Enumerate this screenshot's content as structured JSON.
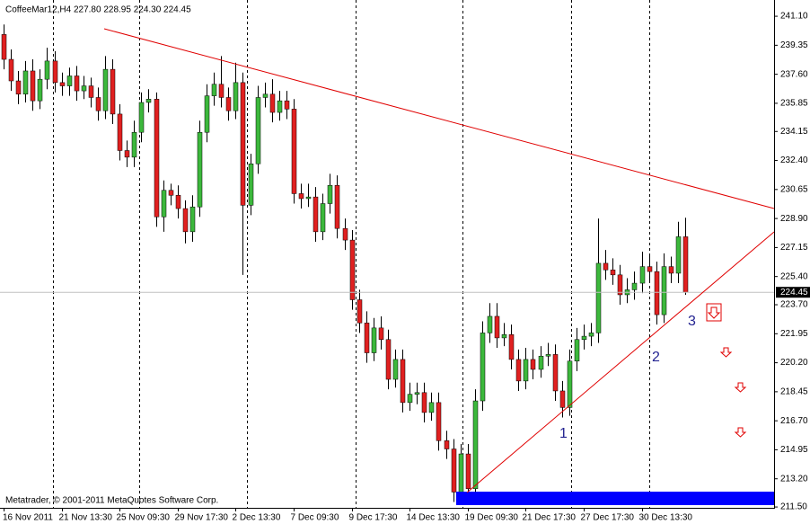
{
  "chart_data": {
    "type": "candlestick",
    "title": "CoffeeMar12,H4  227.80 228.95 224.30 224.45",
    "footer": "Metatrader, © 2001-2011 MetaQuotes Software Corp.",
    "categories": [
      "16 Nov 2011",
      null,
      null,
      null,
      null,
      null,
      null,
      null,
      "21 Nov 13:30",
      null,
      null,
      null,
      null,
      null,
      null,
      null,
      "25 Nov 09:30",
      null,
      null,
      null,
      null,
      null,
      null,
      null,
      "29 Nov 17:30",
      null,
      null,
      null,
      null,
      null,
      null,
      null,
      "2 Dec 13:30",
      null,
      null,
      null,
      null,
      null,
      null,
      null,
      "7 Dec 09:30",
      null,
      null,
      null,
      null,
      null,
      null,
      null,
      "9 Dec 17:30",
      null,
      null,
      null,
      null,
      null,
      null,
      null,
      "14 Dec 13:30",
      null,
      null,
      null,
      null,
      null,
      null,
      null,
      "19 Dec 09:30",
      null,
      null,
      null,
      null,
      null,
      null,
      null,
      "21 Dec 17:30",
      null,
      null,
      null,
      null,
      null,
      null,
      null,
      "27 Dec 17:30",
      null,
      null,
      null,
      null,
      null,
      null,
      null,
      "30 Dec 13:30",
      null,
      null,
      null,
      null,
      null,
      null
    ],
    "open": [
      240.0,
      238.5,
      237.2,
      236.4,
      237.8,
      236.0,
      237.3,
      238.4,
      237.1,
      236.9,
      237.5,
      236.6,
      236.9,
      236.2,
      235.4,
      237.9,
      235.2,
      233.0,
      232.6,
      234.1,
      235.9,
      236.1,
      229.0,
      230.6,
      230.3,
      229.5,
      228.1,
      229.6,
      234.1,
      236.3,
      237.0,
      236.2,
      235.4,
      237.1,
      229.7,
      232.2,
      236.2,
      236.4,
      235.3,
      236.0,
      235.5,
      230.4,
      230.1,
      230.2,
      228.1,
      229.8,
      230.9,
      228.3,
      227.6,
      224.0,
      222.6,
      220.8,
      222.3,
      221.6,
      219.2,
      220.4,
      217.8,
      218.3,
      218.4,
      217.2,
      217.8,
      215.5,
      215.0,
      212.4,
      214.7,
      212.6,
      217.9,
      222.0,
      223.0,
      221.7,
      221.9,
      220.4,
      219.1,
      220.4,
      219.8,
      220.6,
      220.7,
      218.5,
      217.5,
      220.3,
      221.6,
      221.8,
      222.0,
      226.2,
      225.8,
      225.5,
      224.3,
      224.6,
      225.0,
      226.0,
      225.7,
      223.1,
      226.0,
      225.6,
      227.8
    ],
    "high": [
      240.6,
      239.1,
      237.8,
      238.4,
      238.5,
      237.9,
      239.2,
      239.0,
      237.7,
      238.0,
      238.1,
      237.5,
      237.4,
      236.8,
      238.7,
      238.5,
      235.8,
      233.6,
      234.8,
      236.5,
      236.7,
      236.5,
      231.2,
      231.0,
      230.9,
      230.0,
      230.3,
      234.8,
      237.0,
      237.7,
      238.7,
      236.8,
      238.3,
      237.7,
      232.8,
      236.9,
      237.1,
      237.3,
      236.6,
      236.6,
      236.1,
      231.0,
      231.0,
      230.8,
      230.4,
      231.6,
      231.5,
      228.9,
      228.2,
      224.6,
      223.3,
      222.9,
      223.0,
      222.2,
      221.0,
      221.0,
      219.0,
      219.0,
      219.0,
      218.4,
      218.4,
      216.1,
      215.6,
      215.3,
      215.3,
      218.6,
      222.7,
      223.8,
      223.8,
      222.6,
      222.5,
      221.0,
      221.1,
      221.0,
      221.2,
      221.4,
      221.3,
      219.1,
      221.0,
      222.3,
      222.5,
      222.6,
      228.9,
      227.0,
      226.5,
      226.1,
      225.3,
      225.7,
      226.9,
      226.7,
      226.3,
      226.8,
      226.6,
      228.7,
      228.95
    ],
    "low": [
      237.9,
      236.6,
      235.8,
      235.9,
      235.4,
      235.5,
      236.7,
      236.5,
      236.3,
      236.3,
      236.0,
      236.1,
      235.6,
      234.8,
      234.9,
      234.6,
      232.4,
      232.0,
      232.0,
      233.5,
      235.3,
      228.4,
      228.1,
      229.7,
      228.9,
      227.4,
      227.5,
      229.0,
      233.5,
      235.7,
      235.6,
      234.8,
      234.9,
      225.5,
      229.1,
      231.6,
      235.6,
      234.7,
      234.8,
      234.9,
      229.8,
      229.5,
      229.6,
      227.5,
      227.6,
      229.2,
      227.7,
      227.0,
      223.4,
      222.0,
      220.2,
      220.3,
      221.0,
      218.6,
      218.7,
      217.2,
      217.3,
      217.7,
      216.6,
      216.7,
      214.9,
      214.4,
      211.8,
      211.9,
      212.0,
      212.0,
      217.3,
      221.4,
      221.1,
      221.2,
      219.8,
      218.5,
      218.6,
      219.2,
      219.3,
      220.0,
      217.9,
      216.9,
      217.0,
      219.7,
      221.0,
      221.2,
      221.4,
      225.2,
      224.9,
      223.7,
      223.8,
      224.0,
      224.4,
      225.1,
      222.5,
      222.6,
      225.0,
      225.0,
      224.3
    ],
    "close": [
      238.5,
      237.2,
      236.4,
      237.8,
      236.0,
      237.3,
      238.4,
      237.1,
      236.9,
      237.5,
      236.6,
      236.9,
      236.2,
      235.4,
      237.9,
      235.2,
      233.0,
      232.6,
      234.1,
      235.9,
      236.1,
      229.0,
      230.6,
      230.3,
      229.5,
      228.1,
      229.6,
      234.1,
      236.3,
      237.0,
      236.2,
      235.4,
      237.1,
      229.7,
      232.2,
      236.2,
      236.4,
      235.3,
      236.0,
      235.5,
      230.4,
      230.1,
      230.2,
      228.1,
      229.8,
      230.9,
      228.3,
      227.6,
      224.0,
      222.6,
      220.8,
      222.3,
      221.6,
      219.2,
      220.4,
      217.8,
      218.3,
      218.4,
      217.2,
      217.8,
      215.5,
      215.0,
      212.4,
      214.7,
      212.6,
      217.9,
      222.0,
      223.0,
      221.7,
      221.9,
      220.4,
      219.1,
      220.4,
      219.8,
      220.6,
      220.7,
      218.5,
      217.5,
      220.3,
      221.6,
      221.8,
      222.0,
      226.2,
      225.8,
      225.5,
      224.3,
      224.6,
      225.0,
      226.0,
      225.7,
      223.1,
      226.0,
      225.6,
      227.8,
      224.45
    ],
    "up_color": "#3cb83c",
    "down_color": "#e02020",
    "last_price": 224.45,
    "ylim": [
      211.45,
      242.08
    ],
    "yticks": [
      {
        "value": 241.1,
        "label": "241.10"
      },
      {
        "value": 239.35,
        "label": "239.35"
      },
      {
        "value": 237.6,
        "label": "237.60"
      },
      {
        "value": 235.85,
        "label": "235.85"
      },
      {
        "value": 234.15,
        "label": "234.15"
      },
      {
        "value": 232.4,
        "label": "232.40"
      },
      {
        "value": 230.65,
        "label": "230.65"
      },
      {
        "value": 228.9,
        "label": "228.90"
      },
      {
        "value": 227.15,
        "label": "227.15"
      },
      {
        "value": 225.4,
        "label": "225.40"
      },
      {
        "value": 223.7,
        "label": "223.70"
      },
      {
        "value": 221.95,
        "label": "221.95"
      },
      {
        "value": 220.2,
        "label": "220.20"
      },
      {
        "value": 218.45,
        "label": "218.45"
      },
      {
        "value": 216.7,
        "label": "216.70"
      },
      {
        "value": 214.95,
        "label": "214.95"
      },
      {
        "value": 213.2,
        "label": "213.20"
      },
      {
        "value": 211.5,
        "label": "211.50"
      }
    ],
    "annotations": [
      "1",
      "2",
      "3"
    ]
  }
}
